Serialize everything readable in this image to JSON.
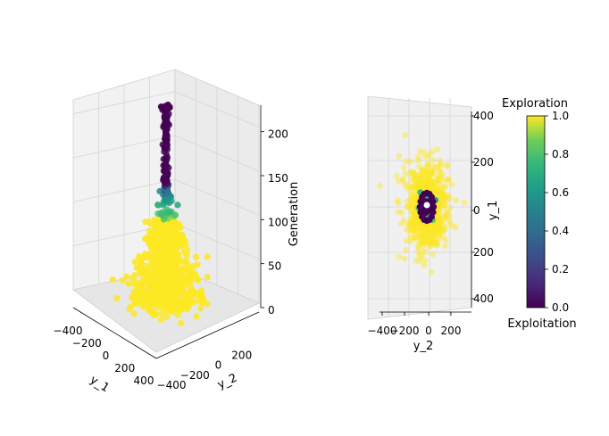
{
  "chart_data": [
    {
      "type": "scatter",
      "projection": "3d",
      "title": "",
      "xlabel": "y_1",
      "ylabel": "y_2",
      "zlabel": "Generation",
      "xlim": [
        -400,
        400
      ],
      "ylim": [
        -400,
        400
      ],
      "zlim": [
        0,
        225
      ],
      "x_ticks": [
        "−400",
        "−200",
        "0",
        "200",
        "400"
      ],
      "y_ticks": [
        "−400",
        "−200",
        "0",
        "200"
      ],
      "z_ticks": [
        "0",
        "50",
        "100",
        "150",
        "200"
      ],
      "color_variable": "exploration",
      "description_of_distribution": {
        "exploitation_generations": [
          150,
          225
        ],
        "transition_generations": [
          100,
          150
        ],
        "exploration_generations": [
          0,
          100
        ]
      }
    },
    {
      "type": "scatter",
      "projection": "3d-top-view",
      "xlabel": "y_2",
      "ylabel": "y_1",
      "x_ticks": [
        "−400",
        "−200",
        "0",
        "200"
      ],
      "y_ticks": [
        "400",
        "200",
        "0",
        "200",
        "400"
      ],
      "xlim": [
        -400,
        400
      ],
      "ylim": [
        -400,
        400
      ]
    }
  ],
  "colorbar": {
    "top_label": "Exploration",
    "bottom_label": "Exploitation",
    "ticks": [
      "0.0",
      "0.2",
      "0.4",
      "0.6",
      "0.8",
      "1.0"
    ],
    "range": [
      0,
      1
    ],
    "colormap": "viridis"
  },
  "colors": {
    "exploration": "#fde725",
    "exploitation": "#440154",
    "pane_left": "#f2f2f2",
    "pane_right": "#ebebeb",
    "grid": "#d6d6d6"
  }
}
